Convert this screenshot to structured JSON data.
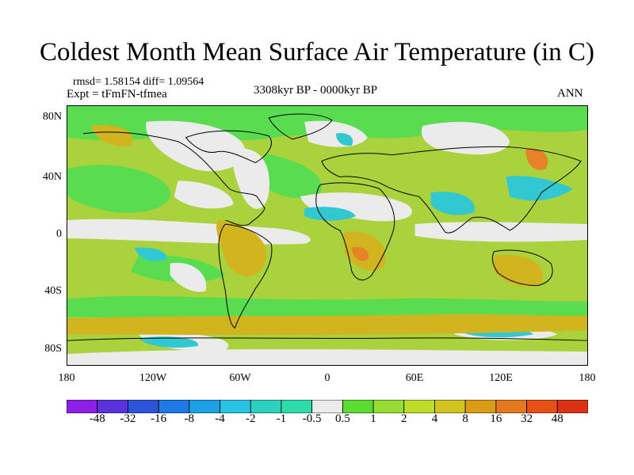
{
  "title": "Coldest Month Mean Surface Air Temperature (in C)",
  "stats": "rmsd= 1.58154 diff= 1.09564",
  "expt": "Expt = tFmFN-tfmea",
  "period": "3308kyr BP - 0000kyr BP",
  "season": "ANN",
  "y_ticks": [
    "80N",
    "40N",
    "0",
    "40S",
    "80S"
  ],
  "x_ticks": [
    "180",
    "120W",
    "60W",
    "0",
    "60E",
    "120E",
    "180"
  ],
  "colorbar": {
    "labels": [
      "-48",
      "-32",
      "-16",
      "-8",
      "-4",
      "-2",
      "-1",
      "-0.5",
      "0.5",
      "1",
      "2",
      "4",
      "8",
      "16",
      "32",
      "48"
    ],
    "colors": [
      "#8c1ee6",
      "#5a32dc",
      "#2d55dc",
      "#1e78e6",
      "#1ea0e6",
      "#28c3e6",
      "#2dd2be",
      "#2ddcaa",
      "#ebebeb",
      "#5adc32",
      "#96dc32",
      "#bedc28",
      "#d2c31e",
      "#dc9b14",
      "#e6781e",
      "#e65014",
      "#dc3214"
    ]
  },
  "map": {
    "ocean_color": "#aad23c",
    "cool_color": "#5adc50",
    "neutral_color": "#ebebeb",
    "cold_color": "#32c8d2",
    "warm_color": "#d2b41e",
    "hot_color": "#e68228"
  }
}
